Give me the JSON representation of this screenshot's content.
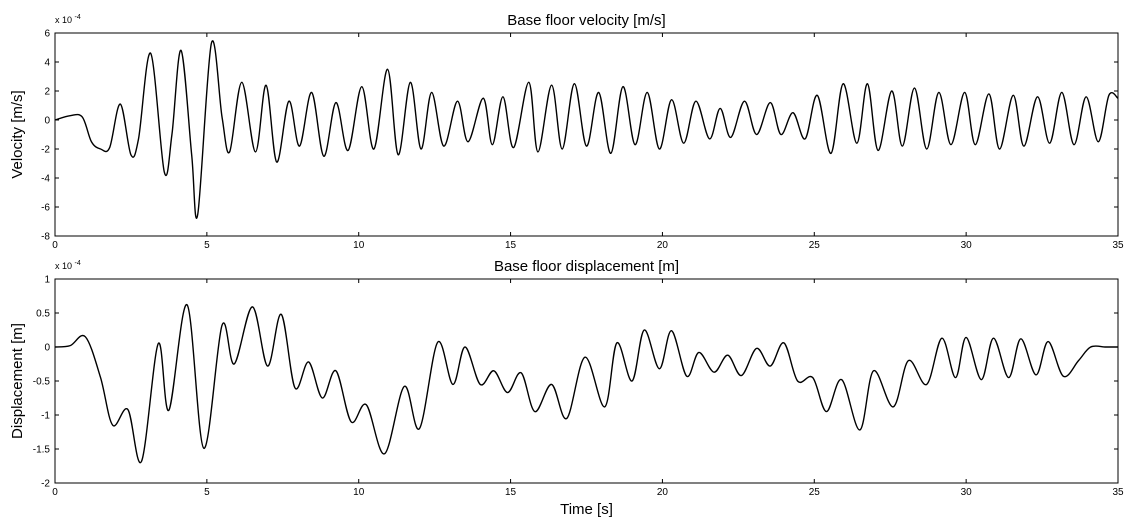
{
  "figure": {
    "background": "#ffffff",
    "line_color": "#000000"
  },
  "chart_data": [
    {
      "type": "line",
      "title": "Base floor velocity [m/s]",
      "xlabel": "",
      "ylabel": "Velocity [m/s]",
      "y_multiplier": "x 10",
      "y_multiplier_exp": "-4",
      "xlim": [
        0,
        35
      ],
      "ylim": [
        -8,
        6
      ],
      "xticks": [
        0,
        5,
        10,
        15,
        20,
        25,
        30,
        35
      ],
      "yticks": [
        -8,
        -6,
        -4,
        -2,
        0,
        2,
        4,
        6
      ],
      "xtick_labels": [
        "0",
        "5",
        "10",
        "15",
        "20",
        "25",
        "30",
        "35"
      ],
      "ytick_labels": [
        "-8",
        "-6",
        "-4",
        "-2",
        "0",
        "2",
        "4",
        "6"
      ],
      "grid": false,
      "series": [
        {
          "x": [
            0,
            0.5,
            0.9,
            1.2,
            1.5,
            1.8,
            2.15,
            2.5,
            2.75,
            3.15,
            3.6,
            3.85,
            4.15,
            4.5,
            4.7,
            5.15,
            5.5,
            5.75,
            6.15,
            6.6,
            6.95,
            7.3,
            7.7,
            8.05,
            8.45,
            8.85,
            9.25,
            9.65,
            10.1,
            10.5,
            10.95,
            11.3,
            11.7,
            12.05,
            12.4,
            12.8,
            13.25,
            13.6,
            14.1,
            14.4,
            14.75,
            15.1,
            15.6,
            15.9,
            16.35,
            16.7,
            17.1,
            17.5,
            17.9,
            18.3,
            18.7,
            19.1,
            19.5,
            19.9,
            20.3,
            20.7,
            21.1,
            21.55,
            21.9,
            22.25,
            22.7,
            23.1,
            23.55,
            23.9,
            24.3,
            24.7,
            25.1,
            25.55,
            25.95,
            26.4,
            26.75,
            27.1,
            27.55,
            27.9,
            28.3,
            28.7,
            29.1,
            29.5,
            29.95,
            30.3,
            30.75,
            31.1,
            31.55,
            31.9,
            32.35,
            32.75,
            33.15,
            33.55,
            33.95,
            34.35,
            34.7,
            35
          ],
          "y": [
            0,
            0.3,
            0.2,
            -1.5,
            -2.0,
            -1.9,
            1.1,
            -2.4,
            -1.3,
            4.6,
            -3.6,
            -1.0,
            4.8,
            -2.4,
            -6.5,
            5.3,
            0.2,
            -2.2,
            2.6,
            -2.2,
            2.4,
            -2.9,
            1.3,
            -1.8,
            1.9,
            -2.5,
            1.2,
            -2.1,
            2.3,
            -2.0,
            3.5,
            -2.4,
            2.6,
            -2.0,
            1.9,
            -1.8,
            1.3,
            -1.5,
            1.5,
            -1.7,
            1.6,
            -1.9,
            2.6,
            -2.2,
            2.4,
            -2.0,
            2.5,
            -1.8,
            1.9,
            -2.3,
            2.3,
            -1.7,
            1.9,
            -2.0,
            1.4,
            -1.6,
            1.3,
            -1.3,
            0.8,
            -1.2,
            1.3,
            -1.0,
            1.2,
            -1.0,
            0.5,
            -1.3,
            1.7,
            -2.3,
            2.5,
            -1.6,
            2.5,
            -2.1,
            2.0,
            -1.8,
            2.2,
            -2.0,
            1.9,
            -1.7,
            1.9,
            -1.7,
            1.8,
            -2.0,
            1.7,
            -1.8,
            1.6,
            -1.6,
            1.9,
            -1.7,
            1.6,
            -1.5,
            1.7,
            1.5
          ]
        }
      ]
    },
    {
      "type": "line",
      "title": "Base floor displacement [m]",
      "xlabel": "Time [s]",
      "ylabel": "Displacement [m]",
      "y_multiplier": "x 10",
      "y_multiplier_exp": "-4",
      "xlim": [
        0,
        35
      ],
      "ylim": [
        -2,
        1
      ],
      "xticks": [
        0,
        5,
        10,
        15,
        20,
        25,
        30,
        35
      ],
      "yticks": [
        -2,
        -1.5,
        -1,
        -0.5,
        0,
        0.5,
        1
      ],
      "xtick_labels": [
        "0",
        "5",
        "10",
        "15",
        "20",
        "25",
        "30",
        "35"
      ],
      "ytick_labels": [
        "-2",
        "-1.5",
        "-1",
        "-0.5",
        "0",
        "0.5",
        "1"
      ],
      "grid": false,
      "series": [
        {
          "x": [
            0,
            0.5,
            1.0,
            1.5,
            1.9,
            2.4,
            2.85,
            3.4,
            3.75,
            4.35,
            4.9,
            5.5,
            5.9,
            6.5,
            7.0,
            7.45,
            7.9,
            8.35,
            8.8,
            9.25,
            9.75,
            10.25,
            10.85,
            11.5,
            12.0,
            12.6,
            13.1,
            13.5,
            14.0,
            14.45,
            14.9,
            15.35,
            15.8,
            16.35,
            16.85,
            17.45,
            18.1,
            18.5,
            19.0,
            19.4,
            19.9,
            20.3,
            20.8,
            21.2,
            21.7,
            22.15,
            22.6,
            23.1,
            23.55,
            24.0,
            24.45,
            24.95,
            25.4,
            25.9,
            26.5,
            26.95,
            27.6,
            28.1,
            28.7,
            29.2,
            29.65,
            30.0,
            30.5,
            30.9,
            31.4,
            31.8,
            32.3,
            32.7,
            33.2,
            33.7,
            34.1,
            34.6,
            35
          ],
          "y": [
            0,
            0.02,
            0.15,
            -0.45,
            -1.15,
            -0.92,
            -1.68,
            0.05,
            -0.93,
            0.62,
            -1.49,
            0.32,
            -0.25,
            0.59,
            -0.28,
            0.48,
            -0.6,
            -0.22,
            -0.75,
            -0.35,
            -1.1,
            -0.85,
            -1.57,
            -0.58,
            -1.2,
            0.07,
            -0.55,
            0.0,
            -0.55,
            -0.35,
            -0.67,
            -0.38,
            -0.95,
            -0.55,
            -1.05,
            -0.15,
            -0.88,
            0.06,
            -0.5,
            0.25,
            -0.32,
            0.24,
            -0.43,
            -0.08,
            -0.37,
            -0.12,
            -0.42,
            -0.02,
            -0.28,
            0.06,
            -0.5,
            -0.45,
            -0.95,
            -0.48,
            -1.22,
            -0.35,
            -0.88,
            -0.2,
            -0.55,
            0.13,
            -0.45,
            0.14,
            -0.48,
            0.13,
            -0.45,
            0.12,
            -0.41,
            0.08,
            -0.43,
            -0.2,
            0.0,
            0.0,
            0.0
          ]
        }
      ]
    }
  ]
}
